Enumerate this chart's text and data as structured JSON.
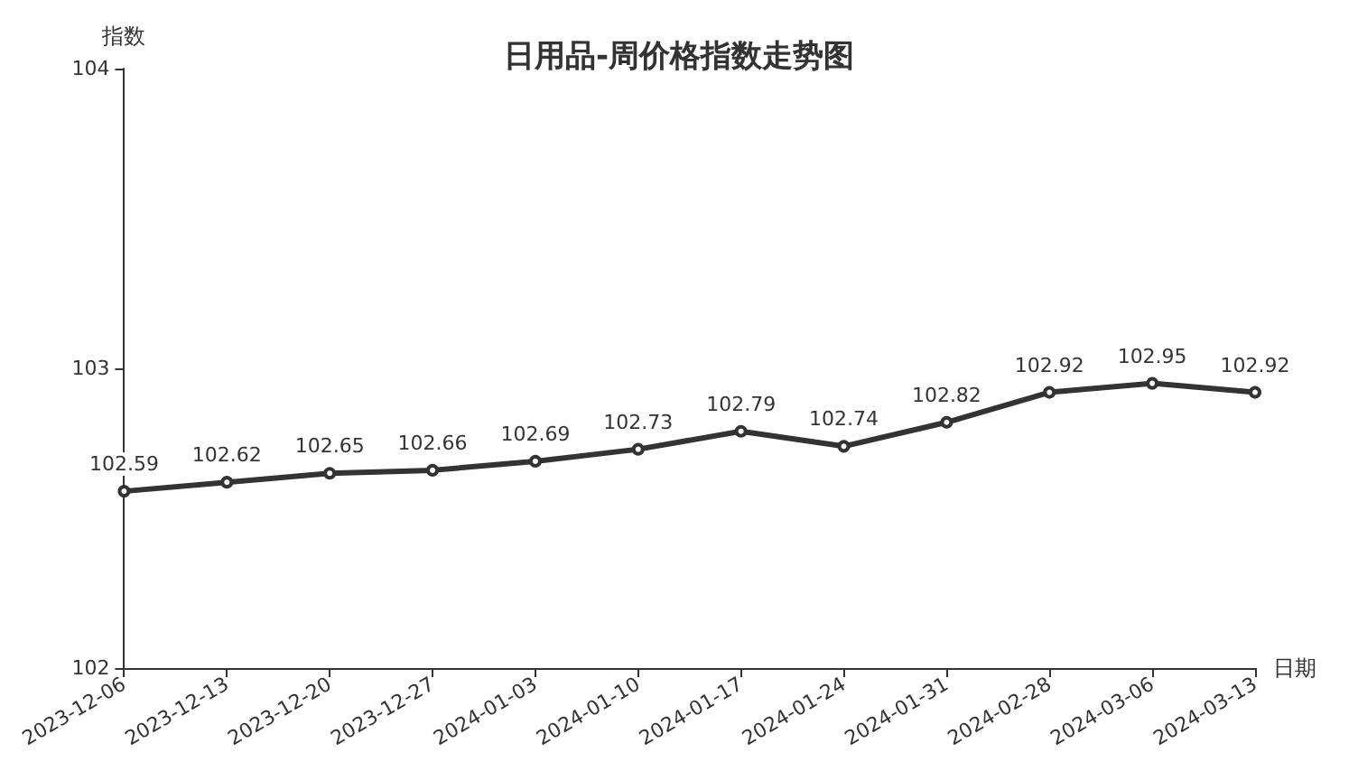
{
  "chart_data": {
    "type": "line",
    "title": "日用品-周价格指数走势图",
    "xlabel": "日期",
    "ylabel": "指数",
    "categories": [
      "2023-12-06",
      "2023-12-13",
      "2023-12-20",
      "2023-12-27",
      "2024-01-03",
      "2024-01-10",
      "2024-01-17",
      "2024-01-24",
      "2024-01-31",
      "2024-02-28",
      "2024-03-06",
      "2024-03-13"
    ],
    "series": [
      {
        "color": "#333333",
        "values": [
          102.59,
          102.62,
          102.65,
          102.66,
          102.69,
          102.73,
          102.79,
          102.74,
          102.82,
          102.92,
          102.95,
          102.92
        ]
      }
    ],
    "ylim": [
      102,
      104
    ],
    "yticks": [
      102,
      103,
      104
    ],
    "data_labels": true,
    "marker": "circle",
    "line_style": "solid",
    "grid": false
  }
}
